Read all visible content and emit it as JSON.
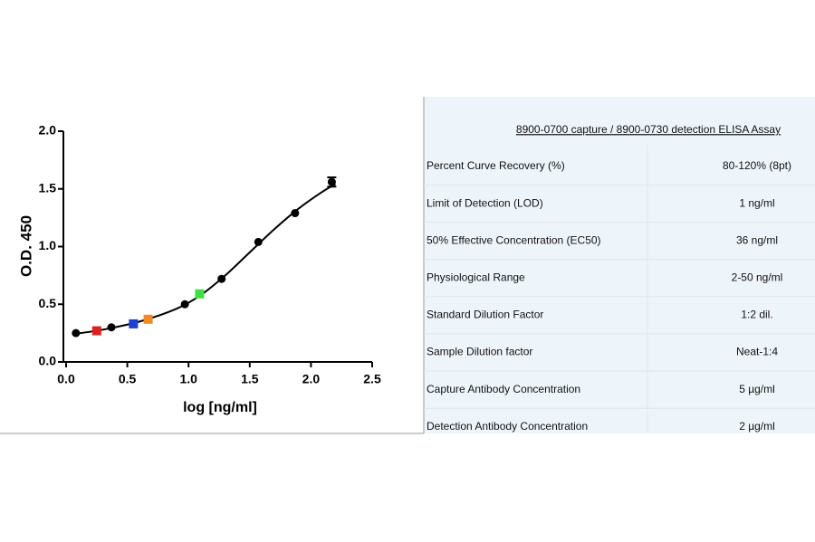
{
  "chart_data": {
    "type": "scatter",
    "x_label": "log [ng/ml]",
    "y_label": "O.D. 450",
    "xlim": [
      0,
      2.5
    ],
    "xticks": [
      {
        "value": 0,
        "label": "0.0"
      },
      0.5,
      {
        "value": 1,
        "label": "1.0"
      },
      1.5,
      {
        "value": 2,
        "label": "2.0"
      },
      2.5
    ],
    "ylim": [
      0,
      2
    ],
    "yticks": [
      {
        "value": 0,
        "label": "0.0"
      },
      0.5,
      {
        "value": 1,
        "label": "1.0"
      },
      1.5,
      {
        "value": 2,
        "label": "2.0"
      }
    ],
    "series": [
      {
        "type": "scatter",
        "x": [
          0.08,
          0.25,
          0.37,
          0.55,
          0.67,
          0.97,
          1.09,
          1.27,
          1.57,
          1.87,
          2.17
        ],
        "values": [
          0.25,
          0.27,
          0.3,
          0.33,
          0.37,
          0.5,
          0.59,
          0.72,
          1.04,
          1.29,
          1.56
        ],
        "errors": [
          null,
          null,
          null,
          null,
          null,
          null,
          null,
          null,
          null,
          null,
          0.04
        ],
        "colors": [
          "#000000",
          "#e02020",
          "#000000",
          "#1f3fd0",
          "#f08c20",
          "#000000",
          "#40e040",
          "#000000",
          "#000000",
          "#000000",
          "#000000"
        ]
      },
      {
        "type": "line",
        "color": "#000000",
        "x": [
          0.05,
          0.3,
          0.6,
          0.9,
          1.1,
          1.3,
          1.5,
          1.7,
          1.9,
          2.1,
          2.2
        ],
        "values": [
          0.24,
          0.28,
          0.35,
          0.46,
          0.58,
          0.75,
          0.95,
          1.15,
          1.33,
          1.48,
          1.54
        ]
      }
    ]
  },
  "table": {
    "title": "8900-0700 capture / 8900-0730 detection ELISA Assay",
    "rows": [
      [
        "Percent Curve Recovery (%)",
        "80-120% (8pt)"
      ],
      [
        "Limit of Detection (LOD)",
        "1 ng/ml"
      ],
      [
        "50% Effective Concentration (EC50)",
        "36 ng/ml"
      ],
      [
        "Physiological Range",
        "2-50 ng/ml"
      ],
      [
        "Standard Dilution Factor",
        "1:2 dil."
      ],
      [
        "Sample Dilution factor",
        "Neat-1:4"
      ],
      [
        "Capture Antibody Concentration",
        "5 µg/ml"
      ],
      [
        "Detection Antibody Concentration",
        "2 µg/ml"
      ]
    ]
  }
}
